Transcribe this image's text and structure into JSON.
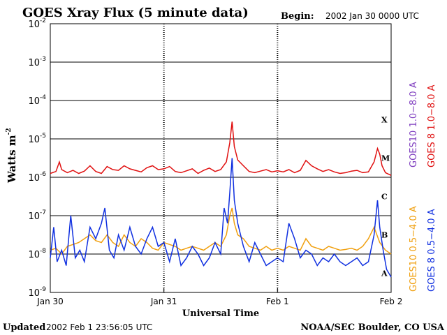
{
  "chart_data": {
    "type": "line",
    "title": "GOES Xray Flux (5 minute data)",
    "begin_label": "Begin:",
    "begin_value": "2002 Jan 30 0000 UTC",
    "xlabel": "Universal Time",
    "ylabel_main": "Watts m",
    "ylabel_sup": "-2",
    "x_ticks": [
      "Jan 30",
      "Jan 31",
      "Feb 1",
      "Feb 2"
    ],
    "x_range_days": [
      0,
      3
    ],
    "y_scale": "log",
    "ylim_exp": [
      -9,
      -2
    ],
    "y_ticks": [
      {
        "base": "10",
        "exp": "-2"
      },
      {
        "base": "10",
        "exp": "-3"
      },
      {
        "base": "10",
        "exp": "-4"
      },
      {
        "base": "10",
        "exp": "-5"
      },
      {
        "base": "10",
        "exp": "-6"
      },
      {
        "base": "10",
        "exp": "-7"
      },
      {
        "base": "10",
        "exp": "-8"
      },
      {
        "base": "10",
        "exp": "-9"
      }
    ],
    "flare_classes": [
      {
        "label": "X",
        "exp": -4
      },
      {
        "label": "M",
        "exp": -5
      },
      {
        "label": "C",
        "exp": -6
      },
      {
        "label": "B",
        "exp": -7
      },
      {
        "label": "A",
        "exp": -8
      }
    ],
    "legend_right": [
      {
        "text": "GOES10 1.0−8.0 A",
        "color": "#8040c0"
      },
      {
        "text": "GOES 8 1.0−8.0 A",
        "color": "#e01010"
      },
      {
        "text": "GOES10 0.5−4.0 A",
        "color": "#f0a010"
      },
      {
        "text": "GOES 8 0.5−4.0 A",
        "color": "#1030e0"
      }
    ],
    "series": [
      {
        "name": "GOES 8 1.0−8.0 A",
        "color": "#e01010",
        "x_days": [
          0,
          0.05,
          0.08,
          0.1,
          0.15,
          0.2,
          0.25,
          0.3,
          0.35,
          0.4,
          0.45,
          0.5,
          0.55,
          0.6,
          0.65,
          0.7,
          0.75,
          0.8,
          0.85,
          0.9,
          0.95,
          1.0,
          1.05,
          1.1,
          1.15,
          1.2,
          1.25,
          1.3,
          1.35,
          1.4,
          1.45,
          1.5,
          1.55,
          1.58,
          1.6,
          1.62,
          1.65,
          1.7,
          1.75,
          1.8,
          1.85,
          1.9,
          1.95,
          2.0,
          2.05,
          2.1,
          2.15,
          2.2,
          2.25,
          2.3,
          2.35,
          2.4,
          2.45,
          2.5,
          2.55,
          2.6,
          2.65,
          2.7,
          2.75,
          2.8,
          2.85,
          2.88,
          2.9,
          2.92,
          2.95,
          3.0
        ],
        "y_exp": [
          -5.9,
          -5.85,
          -5.6,
          -5.8,
          -5.88,
          -5.82,
          -5.9,
          -5.84,
          -5.7,
          -5.85,
          -5.9,
          -5.72,
          -5.8,
          -5.82,
          -5.7,
          -5.78,
          -5.82,
          -5.86,
          -5.75,
          -5.7,
          -5.8,
          -5.78,
          -5.72,
          -5.85,
          -5.88,
          -5.83,
          -5.78,
          -5.9,
          -5.82,
          -5.76,
          -5.85,
          -5.8,
          -5.6,
          -5.1,
          -4.55,
          -5.2,
          -5.55,
          -5.7,
          -5.85,
          -5.88,
          -5.84,
          -5.8,
          -5.86,
          -5.83,
          -5.86,
          -5.8,
          -5.88,
          -5.82,
          -5.56,
          -5.7,
          -5.78,
          -5.85,
          -5.8,
          -5.86,
          -5.9,
          -5.88,
          -5.84,
          -5.82,
          -5.88,
          -5.86,
          -5.6,
          -5.25,
          -5.4,
          -5.7,
          -5.88,
          -5.95
        ]
      },
      {
        "name": "GOES10 0.5−4.0 A",
        "color": "#f0a010",
        "x_days": [
          0,
          0.05,
          0.1,
          0.15,
          0.2,
          0.25,
          0.3,
          0.35,
          0.4,
          0.45,
          0.5,
          0.55,
          0.6,
          0.65,
          0.7,
          0.75,
          0.8,
          0.85,
          0.9,
          0.95,
          1.0,
          1.05,
          1.1,
          1.15,
          1.2,
          1.25,
          1.3,
          1.35,
          1.4,
          1.45,
          1.5,
          1.55,
          1.58,
          1.6,
          1.62,
          1.65,
          1.7,
          1.75,
          1.8,
          1.85,
          1.9,
          1.95,
          2.0,
          2.05,
          2.1,
          2.15,
          2.2,
          2.25,
          2.3,
          2.35,
          2.4,
          2.45,
          2.5,
          2.55,
          2.6,
          2.65,
          2.7,
          2.75,
          2.8,
          2.85,
          2.9,
          2.95,
          3.0
        ],
        "y_exp": [
          -7.9,
          -7.85,
          -8.0,
          -7.8,
          -7.75,
          -7.7,
          -7.6,
          -7.5,
          -7.65,
          -7.7,
          -7.5,
          -7.7,
          -7.8,
          -7.5,
          -7.7,
          -7.8,
          -7.6,
          -7.7,
          -7.85,
          -7.9,
          -7.7,
          -7.75,
          -7.8,
          -7.9,
          -7.85,
          -7.8,
          -7.85,
          -7.9,
          -7.8,
          -7.7,
          -7.8,
          -7.5,
          -7.0,
          -6.8,
          -7.2,
          -7.5,
          -7.6,
          -7.8,
          -7.85,
          -7.9,
          -7.8,
          -7.9,
          -7.85,
          -7.9,
          -7.8,
          -7.85,
          -7.9,
          -7.6,
          -7.8,
          -7.85,
          -7.9,
          -7.8,
          -7.85,
          -7.9,
          -7.88,
          -7.85,
          -7.9,
          -7.8,
          -7.6,
          -7.3,
          -7.7,
          -7.9,
          -8.0
        ]
      },
      {
        "name": "GOES 8 0.5−4.0 A",
        "color": "#1030e0",
        "x_days": [
          0,
          0.03,
          0.06,
          0.1,
          0.14,
          0.18,
          0.22,
          0.26,
          0.3,
          0.35,
          0.4,
          0.45,
          0.48,
          0.52,
          0.56,
          0.6,
          0.65,
          0.7,
          0.75,
          0.8,
          0.85,
          0.9,
          0.95,
          1.0,
          1.05,
          1.1,
          1.15,
          1.2,
          1.25,
          1.3,
          1.35,
          1.4,
          1.45,
          1.5,
          1.53,
          1.56,
          1.58,
          1.6,
          1.62,
          1.65,
          1.7,
          1.75,
          1.8,
          1.85,
          1.9,
          1.95,
          2.0,
          2.05,
          2.1,
          2.15,
          2.2,
          2.25,
          2.3,
          2.35,
          2.4,
          2.45,
          2.5,
          2.55,
          2.6,
          2.65,
          2.7,
          2.75,
          2.8,
          2.85,
          2.88,
          2.9,
          2.93,
          2.96,
          3.0
        ],
        "y_exp": [
          -8.1,
          -7.3,
          -8.2,
          -7.9,
          -8.3,
          -7.0,
          -8.1,
          -7.9,
          -8.2,
          -7.3,
          -7.6,
          -7.2,
          -6.8,
          -7.9,
          -8.1,
          -7.5,
          -7.9,
          -7.3,
          -7.8,
          -8.0,
          -7.6,
          -7.3,
          -7.8,
          -7.7,
          -8.2,
          -7.6,
          -8.3,
          -8.1,
          -7.8,
          -8.0,
          -8.3,
          -8.1,
          -7.7,
          -8.0,
          -6.8,
          -7.2,
          -6.4,
          -5.5,
          -6.6,
          -7.2,
          -7.8,
          -8.2,
          -7.7,
          -8.0,
          -8.3,
          -8.2,
          -8.1,
          -8.2,
          -7.2,
          -7.6,
          -8.1,
          -7.9,
          -8.0,
          -8.3,
          -8.1,
          -8.2,
          -8.0,
          -8.2,
          -8.3,
          -8.2,
          -8.1,
          -8.3,
          -8.2,
          -7.5,
          -6.6,
          -7.3,
          -7.9,
          -8.4,
          -8.6
        ]
      }
    ]
  },
  "footer": {
    "updated_label": "Updated",
    "updated_value": "2002 Feb  1 23:56:05 UTC",
    "source": "NOAA/SEC Boulder, CO USA"
  }
}
